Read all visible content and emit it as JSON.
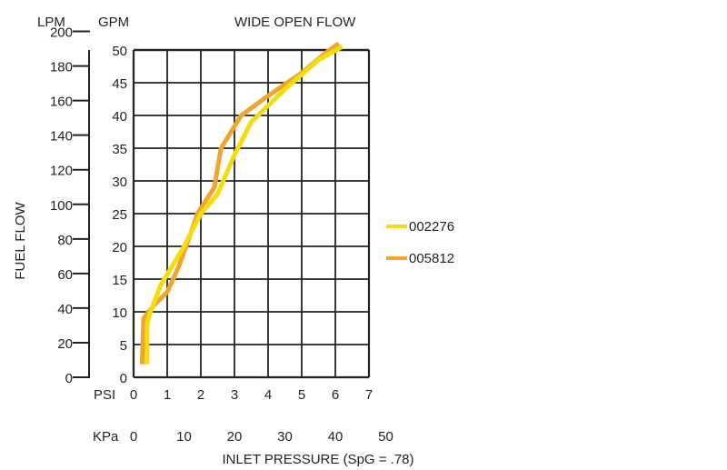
{
  "chart_data": {
    "type": "line",
    "title": "WIDE OPEN FLOW",
    "xlabel": "INLET PRESSURE (SpG = .78)",
    "ylabel": "FUEL FLOW",
    "x_unit_primary": "PSI",
    "x_unit_secondary": "KPa",
    "y_unit_primary": "GPM",
    "y_unit_secondary": "LPM",
    "xlim": [
      0,
      7
    ],
    "ylim": [
      0,
      50
    ],
    "x_ticks": [
      "0",
      "1",
      "2",
      "3",
      "4",
      "5",
      "6",
      "7"
    ],
    "y_ticks_gpm": [
      "0",
      "5",
      "10",
      "15",
      "20",
      "25",
      "30",
      "35",
      "40",
      "45",
      "50"
    ],
    "kpa_ticks": [
      "0",
      "10",
      "20",
      "30",
      "40",
      "50"
    ],
    "lpm_ticks": [
      "0",
      "20",
      "40",
      "60",
      "80",
      "100",
      "120",
      "140",
      "160",
      "180",
      "200"
    ],
    "grid": true,
    "legend_position": "right",
    "series": [
      {
        "name": "002276",
        "color": "#F5DC0A",
        "x": [
          0.4,
          0.4,
          0.5,
          0.8,
          1.5,
          2.0,
          2.5,
          3.0,
          3.5,
          4.5,
          5.5,
          6.2
        ],
        "y": [
          2,
          8,
          10,
          14,
          20,
          25,
          28,
          34,
          39,
          44,
          48.5,
          50.5
        ]
      },
      {
        "name": "005812",
        "color": "#F0A62C",
        "x": [
          0.25,
          0.3,
          0.6,
          1.0,
          1.35,
          1.7,
          1.9,
          2.4,
          2.6,
          3.2,
          4.0,
          5.0,
          5.7,
          6.1
        ],
        "y": [
          2,
          9,
          11,
          13,
          17,
          22,
          25,
          29,
          35,
          40,
          43,
          46.5,
          49.5,
          51
        ]
      }
    ]
  }
}
